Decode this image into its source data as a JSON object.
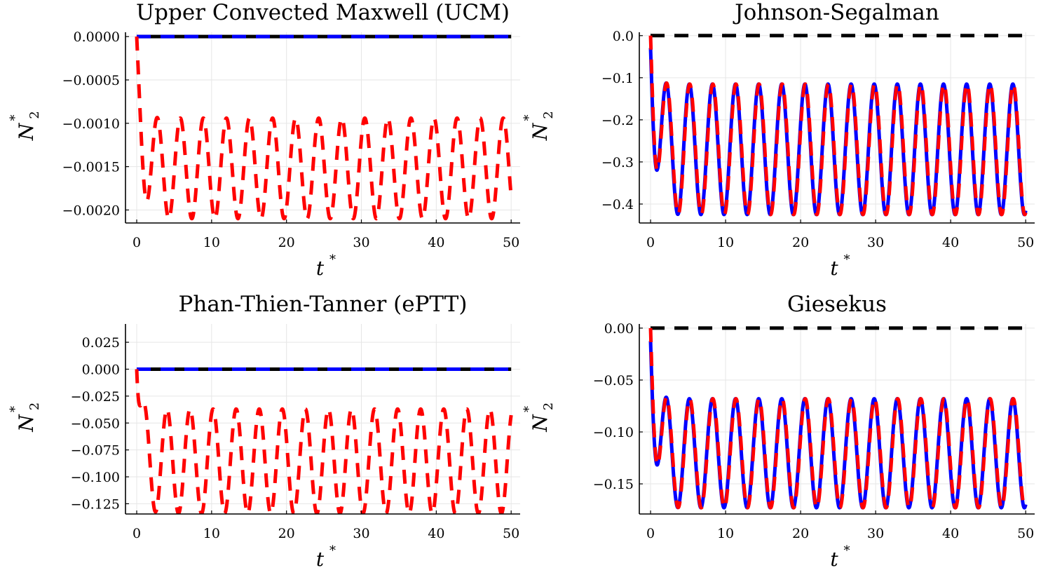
{
  "chart_data": [
    {
      "type": "line",
      "title": "Upper Convected Maxwell (UCM)",
      "xlabel": "t",
      "xlabel_sup": "*",
      "ylabel": "N",
      "ylabel_sub": "2",
      "ylabel_sup": "*",
      "xlim": [
        -1.5,
        51.2
      ],
      "ylim": [
        -0.00215,
        5e-05
      ],
      "xticks": [
        0,
        10,
        20,
        30,
        40,
        50
      ],
      "xtick_labels": [
        "0",
        "10",
        "20",
        "30",
        "40",
        "50"
      ],
      "yticks": [
        0,
        -0.0005,
        -0.001,
        -0.0015,
        -0.002
      ],
      "ytick_labels": [
        "0.0000",
        "−0.0005",
        "−0.0010",
        "−0.0015",
        "−0.0020"
      ],
      "grid": true,
      "series": [
        {
          "name": "black",
          "color": "#000000",
          "style": "solid",
          "fn": "zero"
        },
        {
          "name": "blue",
          "color": "#0000ff",
          "style": "dashed",
          "fn": "zero"
        },
        {
          "name": "red",
          "color": "#ff0000",
          "style": "dashed",
          "fn": "osc",
          "mean": -0.00152,
          "amp": 0.00058,
          "period": 3.08,
          "t0": 1.2,
          "first_val": -0.00115,
          "t_shift": 0
        }
      ]
    },
    {
      "type": "line",
      "title": "Johnson-Segalman",
      "xlabel": "t",
      "xlabel_sup": "*",
      "ylabel": "N",
      "ylabel_sub": "2",
      "ylabel_sup": "*",
      "xlim": [
        -1.5,
        51.2
      ],
      "ylim": [
        -0.445,
        0.008
      ],
      "xticks": [
        0,
        10,
        20,
        30,
        40,
        50
      ],
      "xtick_labels": [
        "0",
        "10",
        "20",
        "30",
        "40",
        "50"
      ],
      "yticks": [
        0,
        -0.1,
        -0.2,
        -0.3,
        -0.4
      ],
      "ytick_labels": [
        "0.0",
        "−0.1",
        "−0.2",
        "−0.3",
        "−0.4"
      ],
      "grid": true,
      "series": [
        {
          "name": "black",
          "color": "#000000",
          "style": "dashed",
          "fn": "zero"
        },
        {
          "name": "blue",
          "color": "#0000ff",
          "style": "solid",
          "fn": "osc",
          "mean": -0.27,
          "amp": 0.155,
          "period": 3.08,
          "t0": 0.6,
          "first_val": -0.255,
          "t_shift": 0.05
        },
        {
          "name": "red",
          "color": "#ff0000",
          "style": "dashed",
          "fn": "osc",
          "mean": -0.27,
          "amp": 0.155,
          "period": 3.08,
          "t0": 0.6,
          "first_val": -0.255,
          "t_shift": 0
        }
      ]
    },
    {
      "type": "line",
      "title": "Phan-Thien-Tanner (ePTT)",
      "xlabel": "t",
      "xlabel_sup": "*",
      "ylabel": "N",
      "ylabel_sub": "2",
      "ylabel_sup": "*",
      "xlim": [
        -1.5,
        51.2
      ],
      "ylim": [
        -0.1345,
        0.042
      ],
      "xticks": [
        0,
        10,
        20,
        30,
        40,
        50
      ],
      "xtick_labels": [
        "0",
        "10",
        "20",
        "30",
        "40",
        "50"
      ],
      "yticks": [
        0.025,
        0,
        -0.025,
        -0.05,
        -0.075,
        -0.1,
        -0.125
      ],
      "ytick_labels": [
        "0.025",
        "0.000",
        "−0.025",
        "−0.050",
        "−0.075",
        "−0.100",
        "−0.125"
      ],
      "grid": true,
      "series": [
        {
          "name": "black",
          "color": "#000000",
          "style": "solid",
          "fn": "zero"
        },
        {
          "name": "blue",
          "color": "#0000ff",
          "style": "dashed",
          "fn": "zero"
        },
        {
          "name": "red",
          "color": "#ff0000",
          "style": "dashed",
          "fn": "osc",
          "mean": -0.0855,
          "amp": 0.0485,
          "period": 3.08,
          "t0": 2.5,
          "first_val": -0.072,
          "t_shift": 0
        }
      ]
    },
    {
      "type": "line",
      "title": "Giesekus",
      "xlabel": "t",
      "xlabel_sup": "*",
      "ylabel": "N",
      "ylabel_sub": "2",
      "ylabel_sup": "*",
      "xlim": [
        -1.5,
        51.2
      ],
      "ylim": [
        -0.179,
        0.004
      ],
      "xticks": [
        0,
        10,
        20,
        30,
        40,
        50
      ],
      "xtick_labels": [
        "0",
        "10",
        "20",
        "30",
        "40",
        "50"
      ],
      "yticks": [
        0,
        -0.05,
        -0.1,
        -0.15
      ],
      "ytick_labels": [
        "0.00",
        "−0.05",
        "−0.10",
        "−0.15"
      ],
      "grid": true,
      "series": [
        {
          "name": "black",
          "color": "#000000",
          "style": "dashed",
          "fn": "zero"
        },
        {
          "name": "blue",
          "color": "#0000ff",
          "style": "solid",
          "fn": "osc",
          "mean": -0.1205,
          "amp": 0.0525,
          "period": 3.08,
          "t0": 0.6,
          "first_val": -0.097,
          "t_shift": 0.05
        },
        {
          "name": "red",
          "color": "#ff0000",
          "style": "dashed",
          "fn": "osc",
          "mean": -0.1205,
          "amp": 0.0525,
          "period": 3.08,
          "t0": 0.6,
          "first_val": -0.097,
          "t_shift": 0
        }
      ]
    }
  ]
}
